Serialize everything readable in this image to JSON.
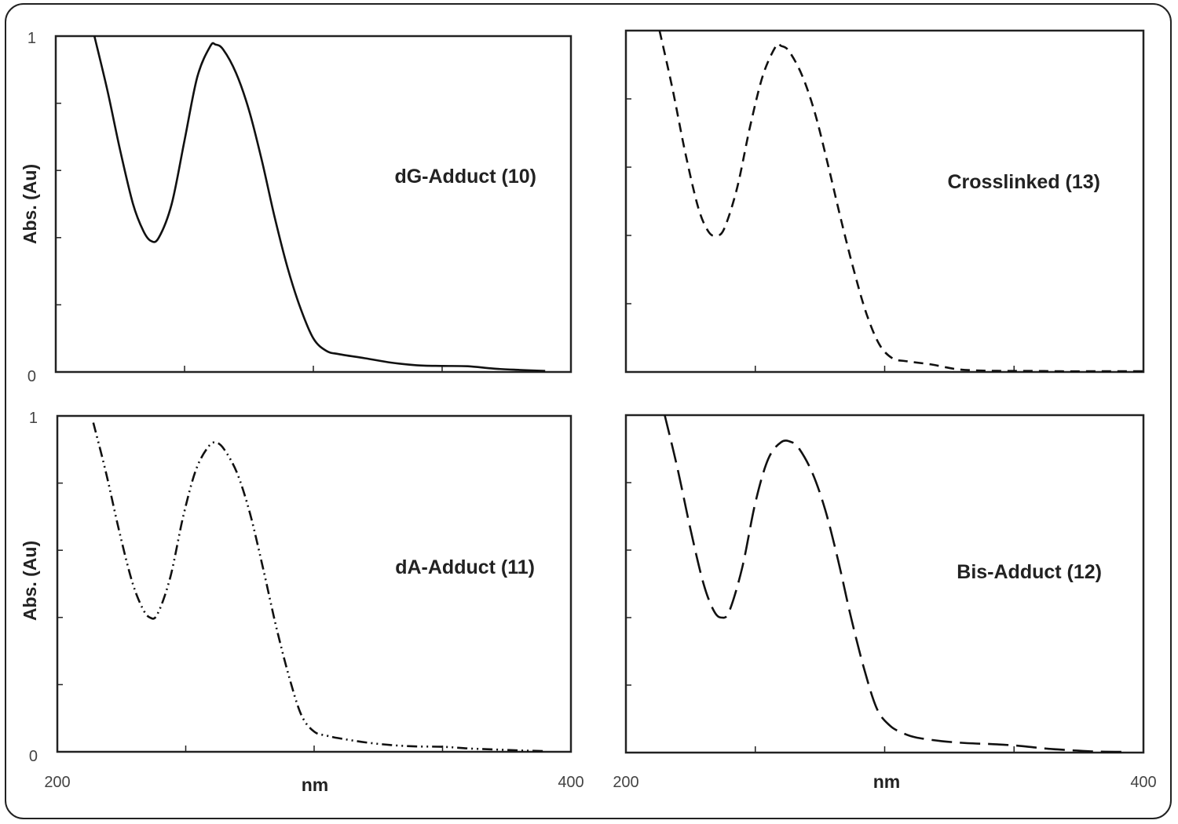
{
  "chart_data": [
    {
      "type": "line",
      "panel": "top-left",
      "label": "dG-Adduct (10)",
      "ylabel": "Abs. (Au)",
      "xlabel": "",
      "xlim": [
        200,
        400
      ],
      "ylim": [
        0,
        1
      ],
      "x_ticks": [
        200,
        250,
        300,
        350,
        400
      ],
      "x_tick_labels": [],
      "y_tick_labels": [
        "0",
        "1"
      ],
      "line_style": "solid",
      "series": [
        {
          "x": [
            215,
            220,
            225,
            230,
            234,
            237,
            240,
            245,
            250,
            255,
            260,
            262,
            265,
            270,
            275,
            280,
            285,
            290,
            295,
            300,
            305,
            310,
            320,
            330,
            340,
            350,
            360,
            370,
            380,
            390
          ],
          "values": [
            1.0,
            0.84,
            0.66,
            0.5,
            0.42,
            0.39,
            0.4,
            0.5,
            0.69,
            0.88,
            0.97,
            0.975,
            0.96,
            0.89,
            0.78,
            0.63,
            0.46,
            0.31,
            0.19,
            0.1,
            0.063,
            0.053,
            0.041,
            0.028,
            0.02,
            0.018,
            0.017,
            0.01,
            0.006,
            0.003
          ]
        }
      ]
    },
    {
      "type": "line",
      "panel": "top-right",
      "label": "Crosslinked (13)",
      "ylabel": "",
      "xlabel": "",
      "xlim": [
        200,
        400
      ],
      "ylim": [
        0,
        1
      ],
      "x_ticks": [
        200,
        250,
        300,
        350,
        400
      ],
      "x_tick_labels": [],
      "y_tick_labels": [],
      "line_style": "dashed",
      "series": [
        {
          "x": [
            213,
            218,
            223,
            228,
            232,
            235,
            238,
            243,
            248,
            253,
            258,
            260,
            263,
            268,
            273,
            278,
            283,
            288,
            293,
            298,
            303,
            308,
            318,
            328,
            338,
            348,
            358,
            368,
            378,
            388,
            400
          ],
          "values": [
            1.0,
            0.83,
            0.64,
            0.48,
            0.41,
            0.4,
            0.42,
            0.54,
            0.72,
            0.87,
            0.955,
            0.955,
            0.94,
            0.87,
            0.76,
            0.61,
            0.45,
            0.3,
            0.17,
            0.08,
            0.04,
            0.032,
            0.022,
            0.008,
            0.004,
            0.003,
            0.003,
            0.002,
            0.002,
            0.002,
            0.002
          ]
        }
      ]
    },
    {
      "type": "line",
      "panel": "bottom-left",
      "label": "dA-Adduct (11)",
      "ylabel": "Abs. (Au)",
      "xlabel": "",
      "xlim": [
        200,
        400
      ],
      "ylim": [
        0,
        1
      ],
      "x_ticks": [
        200,
        250,
        300,
        350,
        400
      ],
      "x_tick_labels": [
        "200",
        "400"
      ],
      "y_tick_labels": [
        "0",
        "1"
      ],
      "line_style": "dash-dot-dot",
      "series": [
        {
          "x": [
            214,
            219,
            224,
            229,
            233,
            236,
            239,
            244,
            249,
            254,
            259,
            262,
            265,
            270,
            275,
            280,
            285,
            290,
            295,
            300,
            305,
            310,
            320,
            330,
            340,
            350,
            360,
            370,
            380,
            390
          ],
          "values": [
            0.98,
            0.83,
            0.66,
            0.51,
            0.43,
            0.4,
            0.41,
            0.52,
            0.7,
            0.84,
            0.91,
            0.92,
            0.9,
            0.83,
            0.71,
            0.55,
            0.38,
            0.23,
            0.11,
            0.06,
            0.048,
            0.04,
            0.028,
            0.02,
            0.016,
            0.015,
            0.01,
            0.007,
            0.004,
            0.002
          ]
        }
      ]
    },
    {
      "type": "line",
      "panel": "bottom-right",
      "label": "Bis-Adduct (12)",
      "ylabel": "",
      "xlabel": "",
      "xlim": [
        200,
        400
      ],
      "ylim": [
        0,
        1
      ],
      "x_ticks": [
        200,
        250,
        300,
        350,
        400
      ],
      "x_tick_labels": [
        "200",
        "400"
      ],
      "y_tick_labels": [],
      "line_style": "long-dash",
      "series": [
        {
          "x": [
            215,
            220,
            225,
            230,
            234,
            237,
            240,
            245,
            250,
            255,
            260,
            264,
            267,
            272,
            277,
            282,
            287,
            292,
            297,
            302,
            307,
            312,
            322,
            332,
            342,
            352,
            362,
            372,
            382,
            392
          ],
          "values": [
            1.0,
            0.84,
            0.66,
            0.5,
            0.42,
            0.4,
            0.42,
            0.55,
            0.74,
            0.87,
            0.92,
            0.92,
            0.9,
            0.83,
            0.72,
            0.57,
            0.4,
            0.25,
            0.13,
            0.08,
            0.058,
            0.045,
            0.034,
            0.028,
            0.025,
            0.02,
            0.012,
            0.007,
            0.003,
            0.002
          ]
        }
      ]
    }
  ],
  "x_axis_titles": [
    "nm",
    "nm"
  ]
}
